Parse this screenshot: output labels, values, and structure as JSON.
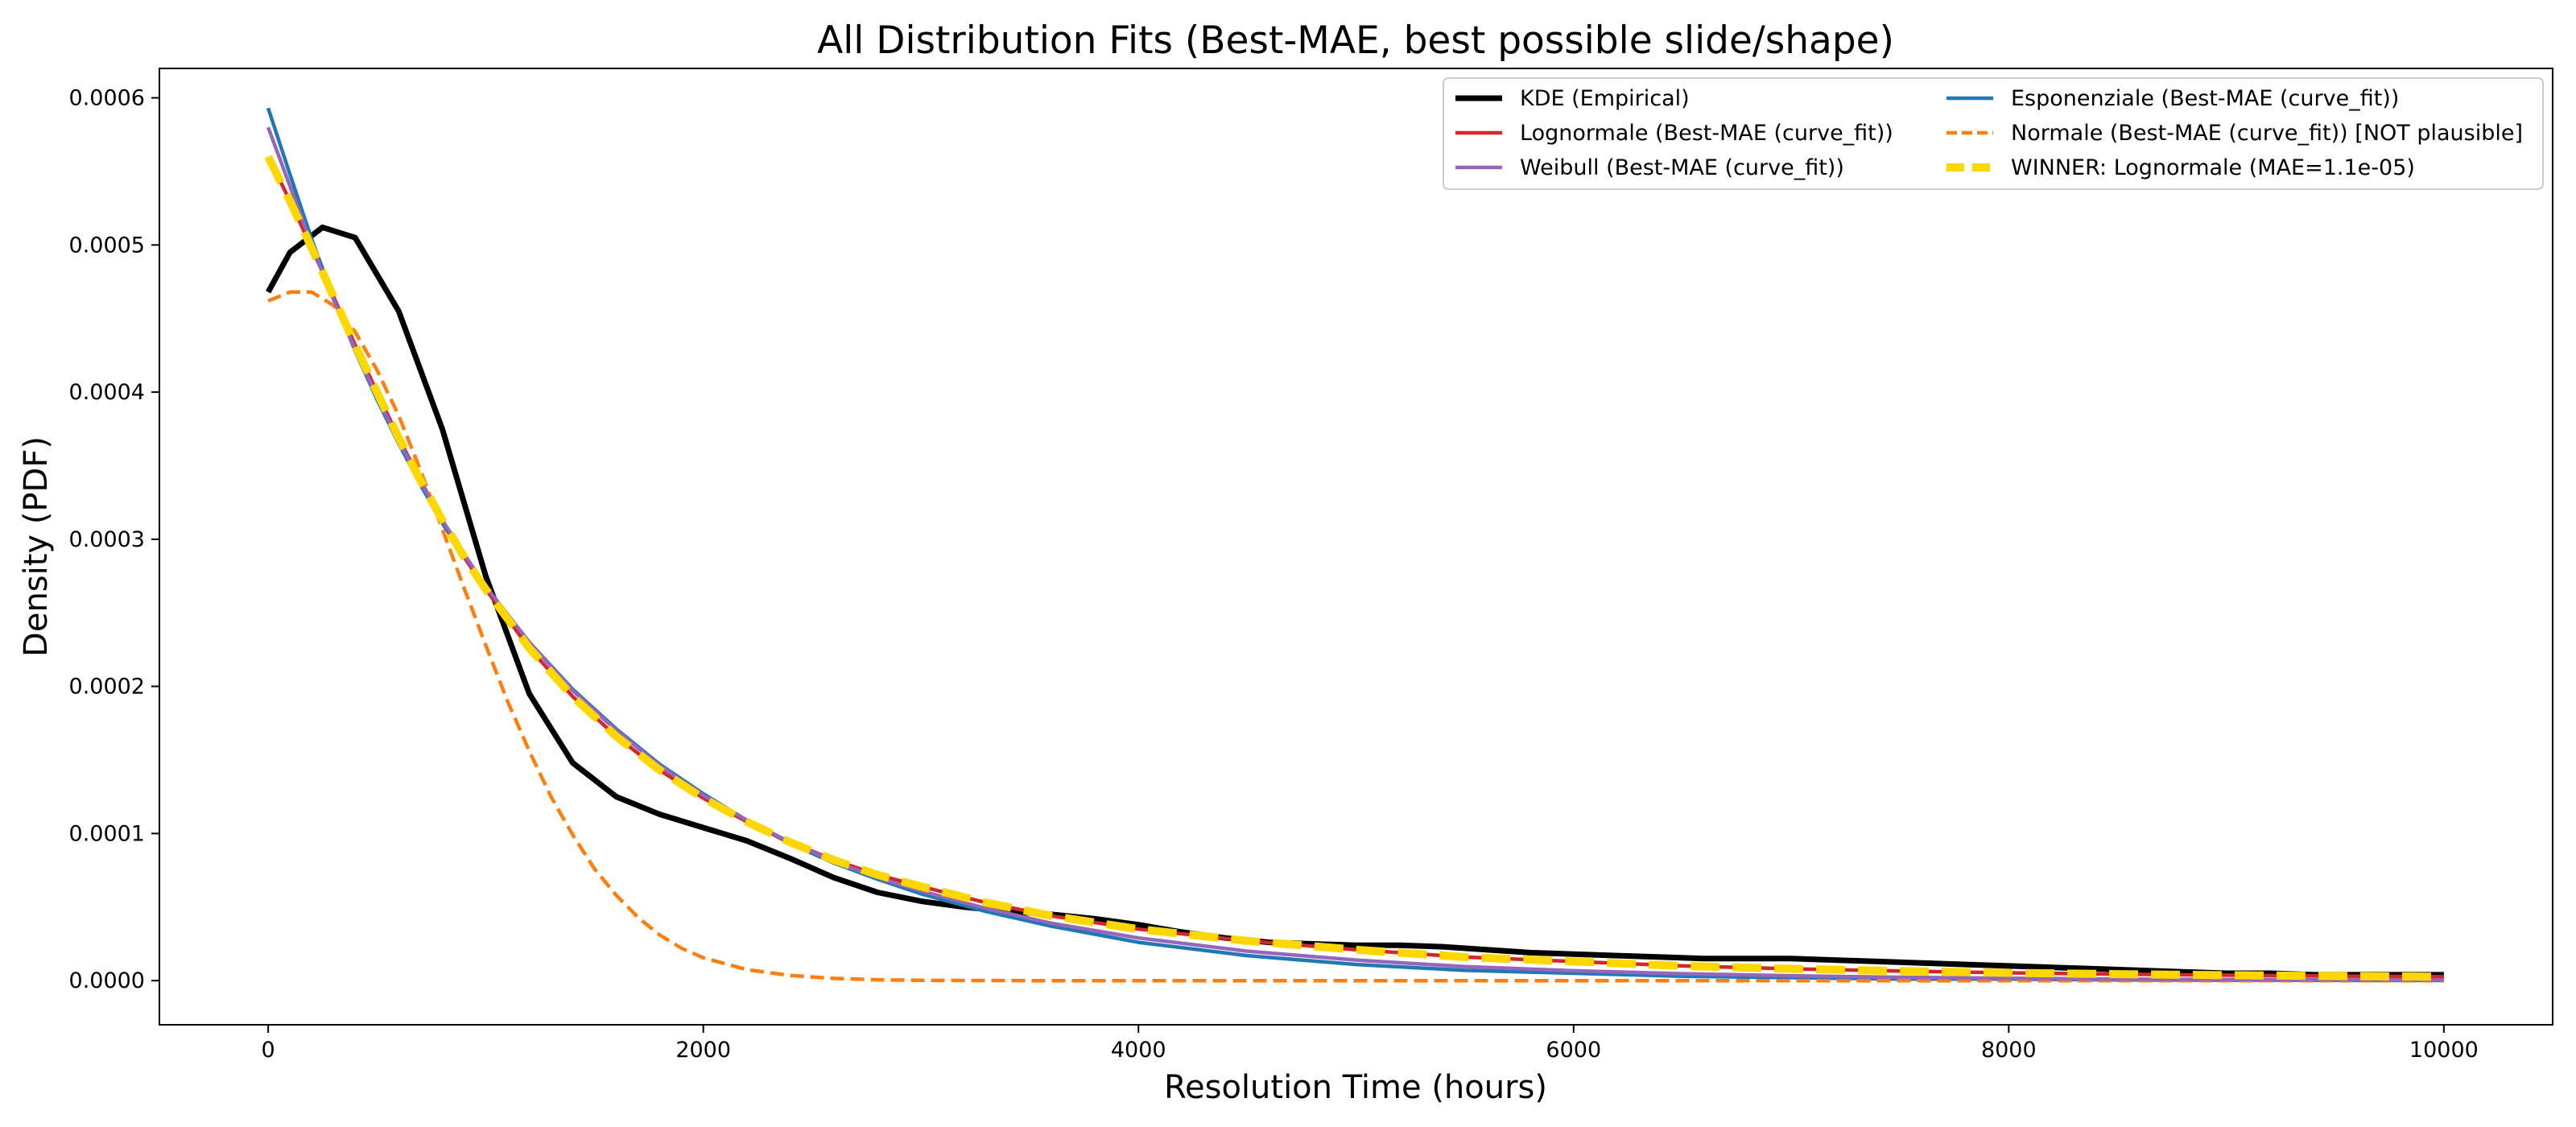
{
  "chart_data": {
    "type": "line",
    "title": "All Distribution Fits (Best-MAE, best possible slide/shape)",
    "xlabel": "Resolution Time (hours)",
    "ylabel": "Density (PDF)",
    "xlim": [
      -500,
      10500
    ],
    "ylim": [
      -3e-05,
      0.00062
    ],
    "xticks": [
      0,
      2000,
      4000,
      6000,
      8000,
      10000
    ],
    "xtick_labels": [
      "0",
      "2000",
      "4000",
      "6000",
      "8000",
      "10000"
    ],
    "yticks": [
      0,
      0.0001,
      0.0002,
      0.0003,
      0.0004,
      0.0005,
      0.0006
    ],
    "ytick_labels": [
      "0.0000",
      "0.0001",
      "0.0002",
      "0.0003",
      "0.0004",
      "0.0005",
      "0.0006"
    ],
    "grid": false,
    "legend_position": "top-right",
    "legend_columns": 2,
    "series": [
      {
        "name": "KDE (Empirical)",
        "color": "#000000",
        "linestyle": "solid",
        "x": [
          0,
          100,
          250,
          400,
          600,
          800,
          1000,
          1200,
          1400,
          1600,
          1800,
          2000,
          2200,
          2400,
          2600,
          2800,
          3000,
          3200,
          3400,
          3600,
          3800,
          4000,
          4200,
          4400,
          4600,
          4800,
          5000,
          5200,
          5400,
          5600,
          5800,
          6000,
          6200,
          6400,
          6600,
          6800,
          7000,
          7200,
          7400,
          7600,
          7800,
          8000,
          8200,
          8400,
          8600,
          8800,
          9000,
          9200,
          9400,
          9600,
          9800,
          10000
        ],
        "y": [
          0.000468,
          0.000495,
          0.000512,
          0.000505,
          0.000455,
          0.000375,
          0.000275,
          0.000195,
          0.000148,
          0.000125,
          0.000113,
          0.000104,
          9.5e-05,
          8.3e-05,
          7e-05,
          6e-05,
          5.4e-05,
          5e-05,
          4.7e-05,
          4.5e-05,
          4.2e-05,
          3.8e-05,
          3.3e-05,
          2.9e-05,
          2.6e-05,
          2.5e-05,
          2.4e-05,
          2.4e-05,
          2.3e-05,
          2.1e-05,
          1.9e-05,
          1.8e-05,
          1.7e-05,
          1.6e-05,
          1.5e-05,
          1.5e-05,
          1.5e-05,
          1.4e-05,
          1.3e-05,
          1.2e-05,
          1.1e-05,
          1e-05,
          9e-06,
          8e-06,
          7e-06,
          6e-06,
          5e-06,
          5e-06,
          4e-06,
          4e-06,
          4e-06,
          4e-06
        ]
      },
      {
        "name": "Esponenziale (Best-MAE (curve_fit))",
        "color": "#1f77b4",
        "linestyle": "solid",
        "x": [
          0,
          100,
          200,
          300,
          400,
          500,
          600,
          700,
          800,
          900,
          1000,
          1200,
          1400,
          1600,
          1800,
          2000,
          2200,
          2400,
          2600,
          2800,
          3000,
          3300,
          3600,
          4000,
          4500,
          5000,
          5500,
          6000,
          6500,
          7000,
          7500,
          8000,
          8500,
          9000,
          9500,
          10000
        ],
        "y": [
          0.000593,
          0.000548,
          0.000504,
          0.000464,
          0.000428,
          0.000395,
          0.000365,
          0.000337,
          0.000311,
          0.000288,
          0.000267,
          0.00023,
          0.000198,
          0.000171,
          0.000147,
          0.000127,
          0.000109,
          9.3e-05,
          8e-05,
          6.9e-05,
          5.9e-05,
          4.7e-05,
          3.7e-05,
          2.6e-05,
          1.7e-05,
          1.1e-05,
          7e-06,
          5e-06,
          3e-06,
          2e-06,
          1e-06,
          1e-06,
          5e-07,
          3e-07,
          2e-07,
          1e-07
        ]
      },
      {
        "name": "Lognormale (Best-MAE (curve_fit))",
        "color": "#d62728",
        "linestyle": "solid",
        "x": [
          0,
          100,
          200,
          300,
          400,
          500,
          600,
          700,
          800,
          900,
          1000,
          1200,
          1400,
          1600,
          1800,
          2000,
          2200,
          2400,
          2600,
          2800,
          3000,
          3300,
          3600,
          4000,
          4500,
          5000,
          5500,
          6000,
          6500,
          7000,
          7500,
          8000,
          8500,
          9000,
          9500,
          10000
        ],
        "y": [
          0.00056,
          0.00053,
          0.000498,
          0.000465,
          0.000432,
          0.0004,
          0.000369,
          0.00034,
          0.000313,
          0.000288,
          0.000266,
          0.000226,
          0.000193,
          0.000166,
          0.000143,
          0.000124,
          0.000108,
          9.4e-05,
          8.2e-05,
          7.2e-05,
          6.4e-05,
          5.3e-05,
          4.4e-05,
          3.5e-05,
          2.7e-05,
          2.1e-05,
          1.6e-05,
          1.3e-05,
          1e-05,
          8e-06,
          6.5e-06,
          5.3e-06,
          4.4e-06,
          3.7e-06,
          3.1e-06,
          2.6e-06
        ]
      },
      {
        "name": "Normale (Best-MAE (curve_fit)) [NOT plausible]",
        "color": "#ff7f0e",
        "linestyle": "dashed",
        "x": [
          0,
          100,
          200,
          300,
          400,
          500,
          600,
          700,
          800,
          900,
          1000,
          1100,
          1200,
          1300,
          1400,
          1500,
          1600,
          1700,
          1800,
          1900,
          2000,
          2200,
          2400,
          2600,
          2800,
          3000,
          3500,
          4000,
          5000,
          6000,
          7000,
          8000,
          9000,
          10000
        ],
        "y": [
          0.000462,
          0.000468,
          0.000468,
          0.000459,
          0.000441,
          0.000415,
          0.000384,
          0.000347,
          0.000307,
          0.000267,
          0.000228,
          0.00019,
          0.000156,
          0.000125,
          9.9e-05,
          7.6e-05,
          5.8e-05,
          4.3e-05,
          3.1e-05,
          2.2e-05,
          1.55e-05,
          7.5e-06,
          3.5e-06,
          1.5e-06,
          6e-07,
          2e-07,
          0.0,
          0.0,
          0.0,
          0.0,
          0.0,
          0.0,
          0.0,
          0.0
        ]
      },
      {
        "name": "Weibull (Best-MAE (curve_fit))",
        "color": "#9467bd",
        "linestyle": "solid",
        "x": [
          0,
          100,
          200,
          300,
          400,
          500,
          600,
          700,
          800,
          900,
          1000,
          1200,
          1400,
          1600,
          1800,
          2000,
          2200,
          2400,
          2600,
          2800,
          3000,
          3300,
          3600,
          4000,
          4500,
          5000,
          5500,
          6000,
          6500,
          7000,
          7500,
          8000,
          8500,
          9000,
          9500,
          10000
        ],
        "y": [
          0.00058,
          0.00054,
          0.0005,
          0.000463,
          0.000429,
          0.000397,
          0.000367,
          0.000339,
          0.000313,
          0.00029,
          0.000268,
          0.00023,
          0.000197,
          0.00017,
          0.000146,
          0.000126,
          0.000109,
          9.4e-05,
          8.1e-05,
          7e-05,
          6.1e-05,
          4.9e-05,
          3.9e-05,
          2.9e-05,
          2e-05,
          1.4e-05,
          9.5e-06,
          6.7e-06,
          4.7e-06,
          3.3e-06,
          2.3e-06,
          1.6e-06,
          1.1e-06,
          8e-07,
          6e-07,
          4e-07
        ]
      },
      {
        "name": "WINNER: Lognormale (MAE=1.1e-05)",
        "color": "#ffd700",
        "linestyle": "dashed",
        "x": [
          0,
          100,
          200,
          300,
          400,
          500,
          600,
          700,
          800,
          900,
          1000,
          1200,
          1400,
          1600,
          1800,
          2000,
          2200,
          2400,
          2600,
          2800,
          3000,
          3300,
          3600,
          4000,
          4500,
          5000,
          5500,
          6000,
          6500,
          7000,
          7500,
          8000,
          8500,
          9000,
          9500,
          10000
        ],
        "y": [
          0.00056,
          0.00053,
          0.000498,
          0.000465,
          0.000432,
          0.0004,
          0.000369,
          0.00034,
          0.000313,
          0.000288,
          0.000266,
          0.000226,
          0.000193,
          0.000166,
          0.000143,
          0.000124,
          0.000108,
          9.4e-05,
          8.2e-05,
          7.2e-05,
          6.4e-05,
          5.3e-05,
          4.4e-05,
          3.5e-05,
          2.7e-05,
          2.1e-05,
          1.6e-05,
          1.3e-05,
          1e-05,
          8e-06,
          6.5e-06,
          5.3e-06,
          4.4e-06,
          3.7e-06,
          3.1e-06,
          2.6e-06
        ]
      }
    ],
    "legend": [
      {
        "label": "KDE (Empirical)",
        "color": "#000000",
        "linestyle": "solid"
      },
      {
        "label": "Esponenziale (Best-MAE (curve_fit))",
        "color": "#1f77b4",
        "linestyle": "solid"
      },
      {
        "label": "Lognormale (Best-MAE (curve_fit))",
        "color": "#d62728",
        "linestyle": "solid"
      },
      {
        "label": "Normale (Best-MAE (curve_fit)) [NOT plausible]",
        "color": "#ff7f0e",
        "linestyle": "dashed"
      },
      {
        "label": "Weibull (Best-MAE (curve_fit))",
        "color": "#9467bd",
        "linestyle": "solid"
      },
      {
        "label": "WINNER: Lognormale (MAE=1.1e-05)",
        "color": "#ffd700",
        "linestyle": "dashed"
      }
    ]
  }
}
